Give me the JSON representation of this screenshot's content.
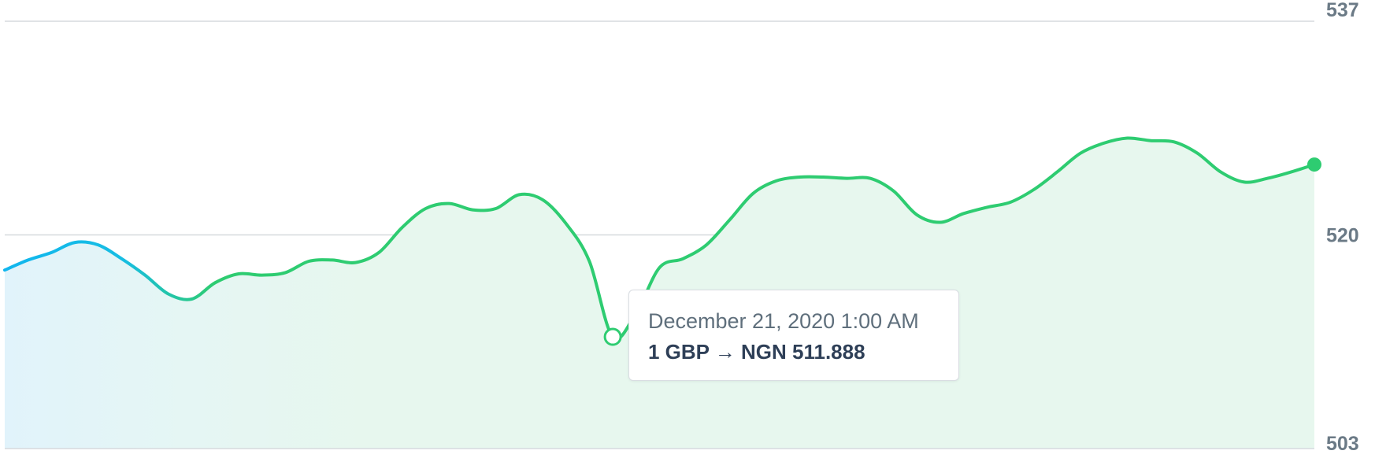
{
  "chart_data": {
    "type": "area",
    "y_axis": {
      "ticks": [
        537,
        520,
        503
      ],
      "ylim": [
        503,
        537
      ],
      "position": "right"
    },
    "grid": true,
    "series": [
      {
        "values": [
          517.2,
          518.0,
          518.6,
          519.4,
          519.2,
          518.1,
          516.8,
          515.3,
          514.9,
          516.2,
          516.9,
          516.8,
          517.0,
          517.9,
          518.0,
          517.8,
          518.6,
          520.6,
          522.1,
          522.5,
          522.0,
          522.1,
          523.2,
          522.8,
          520.9,
          517.9,
          511.888,
          513.8,
          517.4,
          518.1,
          519.2,
          521.2,
          523.3,
          524.3,
          524.6,
          524.6,
          524.5,
          524.5,
          523.5,
          521.6,
          521.0,
          521.7,
          522.2,
          522.6,
          523.6,
          525.0,
          526.5,
          527.3,
          527.7,
          527.5,
          527.4,
          526.5,
          525.0,
          524.2,
          524.5,
          525.0,
          525.6
        ]
      }
    ],
    "colors": {
      "line_start": "#11b6ee",
      "line_main": "#2ecc71",
      "area_start": "#e1f3fb",
      "area_main": "#e7f7ee",
      "grid": "#d6dadd"
    }
  },
  "tooltip": {
    "date": "December 21, 2020 1:00 AM",
    "value": "1 GBP → NGN 511.888"
  }
}
